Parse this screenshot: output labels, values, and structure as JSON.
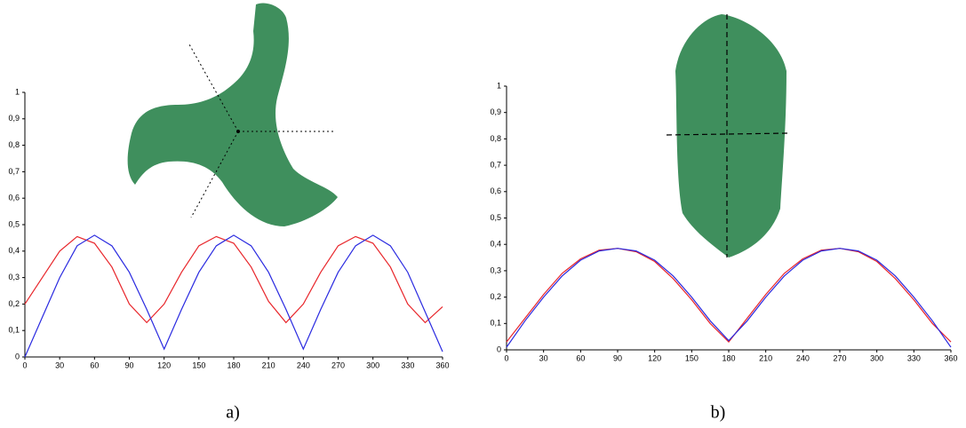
{
  "chart_data": [
    {
      "type": "line",
      "caption": "a)",
      "x": [
        0,
        15,
        30,
        45,
        60,
        75,
        90,
        105,
        120,
        135,
        150,
        165,
        180,
        195,
        210,
        225,
        240,
        255,
        270,
        285,
        300,
        315,
        330,
        345,
        360
      ],
      "series": [
        {
          "color": "#e8262b",
          "values": [
            0.2,
            0.3,
            0.4,
            0.455,
            0.43,
            0.34,
            0.2,
            0.13,
            0.2,
            0.32,
            0.42,
            0.455,
            0.43,
            0.34,
            0.21,
            0.13,
            0.2,
            0.32,
            0.42,
            0.455,
            0.43,
            0.34,
            0.2,
            0.13,
            0.19
          ]
        },
        {
          "color": "#2a2ae0",
          "values": [
            0,
            0.15,
            0.3,
            0.42,
            0.46,
            0.42,
            0.32,
            0.18,
            0.03,
            0.18,
            0.32,
            0.42,
            0.46,
            0.42,
            0.32,
            0.18,
            0.03,
            0.18,
            0.32,
            0.42,
            0.46,
            0.42,
            0.32,
            0.17,
            0.02
          ]
        }
      ],
      "xlim": [
        0,
        360
      ],
      "xticks": [
        0,
        30,
        60,
        90,
        120,
        150,
        180,
        210,
        240,
        270,
        300,
        330,
        360
      ],
      "ylim": [
        0,
        1
      ],
      "yticks": [
        0,
        {
          "value": 0.1,
          "label": "0,1"
        },
        {
          "value": 0.2,
          "label": "0,2"
        },
        {
          "value": 0.3,
          "label": "0,3"
        },
        {
          "value": 0.4,
          "label": "0,4"
        },
        {
          "value": 0.5,
          "label": "0,5"
        },
        {
          "value": 0.6,
          "label": "0,6"
        },
        {
          "value": 0.7,
          "label": "0,7"
        },
        {
          "value": 0.8,
          "label": "0,8"
        },
        {
          "value": 0.9,
          "label": "0,9"
        },
        1
      ],
      "grid": false
    },
    {
      "type": "line",
      "caption": "b)",
      "x": [
        0,
        15,
        30,
        45,
        60,
        75,
        90,
        105,
        120,
        135,
        150,
        165,
        180,
        195,
        210,
        225,
        240,
        255,
        270,
        285,
        300,
        315,
        330,
        345,
        360
      ],
      "series": [
        {
          "color": "#e8262b",
          "values": [
            0.03,
            0.12,
            0.21,
            0.29,
            0.345,
            0.378,
            0.385,
            0.372,
            0.335,
            0.27,
            0.19,
            0.1,
            0.03,
            0.12,
            0.21,
            0.29,
            0.345,
            0.378,
            0.385,
            0.372,
            0.335,
            0.27,
            0.19,
            0.1,
            0.03
          ]
        },
        {
          "color": "#2a2ae0",
          "values": [
            0.01,
            0.11,
            0.2,
            0.28,
            0.34,
            0.375,
            0.385,
            0.375,
            0.34,
            0.28,
            0.2,
            0.11,
            0.035,
            0.11,
            0.2,
            0.28,
            0.34,
            0.375,
            0.385,
            0.375,
            0.34,
            0.28,
            0.2,
            0.11,
            0.01
          ]
        }
      ],
      "xlim": [
        0,
        360
      ],
      "xticks": [
        0,
        30,
        60,
        90,
        120,
        150,
        180,
        210,
        240,
        270,
        300,
        330,
        360
      ],
      "ylim": [
        0,
        1
      ],
      "yticks": [
        0,
        {
          "value": 0.1,
          "label": "0,1"
        },
        {
          "value": 0.2,
          "label": "0,2"
        },
        {
          "value": 0.3,
          "label": "0,3"
        },
        {
          "value": 0.4,
          "label": "0,4"
        },
        {
          "value": 0.5,
          "label": "0,5"
        },
        {
          "value": 0.6,
          "label": "0,6"
        },
        {
          "value": 0.7,
          "label": "0,7"
        },
        {
          "value": 0.8,
          "label": "0,8"
        },
        {
          "value": 0.9,
          "label": "0,9"
        },
        1
      ],
      "grid": false
    }
  ]
}
